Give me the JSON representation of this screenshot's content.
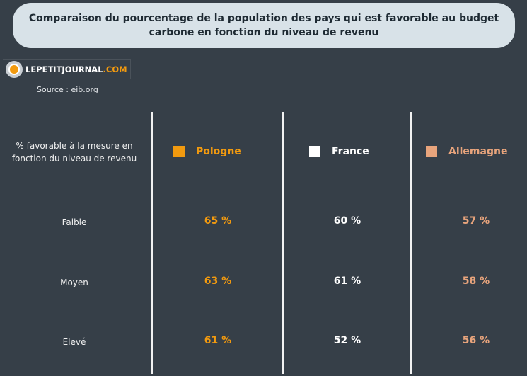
{
  "title": "Comparaison du pourcentage de la population des pays qui est favorable au budget carbone en fonction du niveau de revenu",
  "logo": {
    "name": "LEPETITJOURNAL",
    "suffix": ".COM"
  },
  "source": "Source : eib.org",
  "colors": {
    "background": "#363f48",
    "Pologne": "#f29a0f",
    "France": "#ffffff",
    "Allemagne": "#e8a47c"
  },
  "chart_data": {
    "type": "table",
    "row_header": "% favorable à la mesure en fonction du niveau de revenu",
    "columns": [
      "Pologne",
      "France",
      "Allemagne"
    ],
    "rows": [
      {
        "label": "Faible",
        "values": [
          "65 %",
          "60 %",
          "57 %"
        ]
      },
      {
        "label": "Moyen",
        "values": [
          "63 %",
          "61 %",
          "58 %"
        ]
      },
      {
        "label": "Elevé",
        "values": [
          "61 %",
          "52 %",
          "56 %"
        ]
      }
    ]
  }
}
